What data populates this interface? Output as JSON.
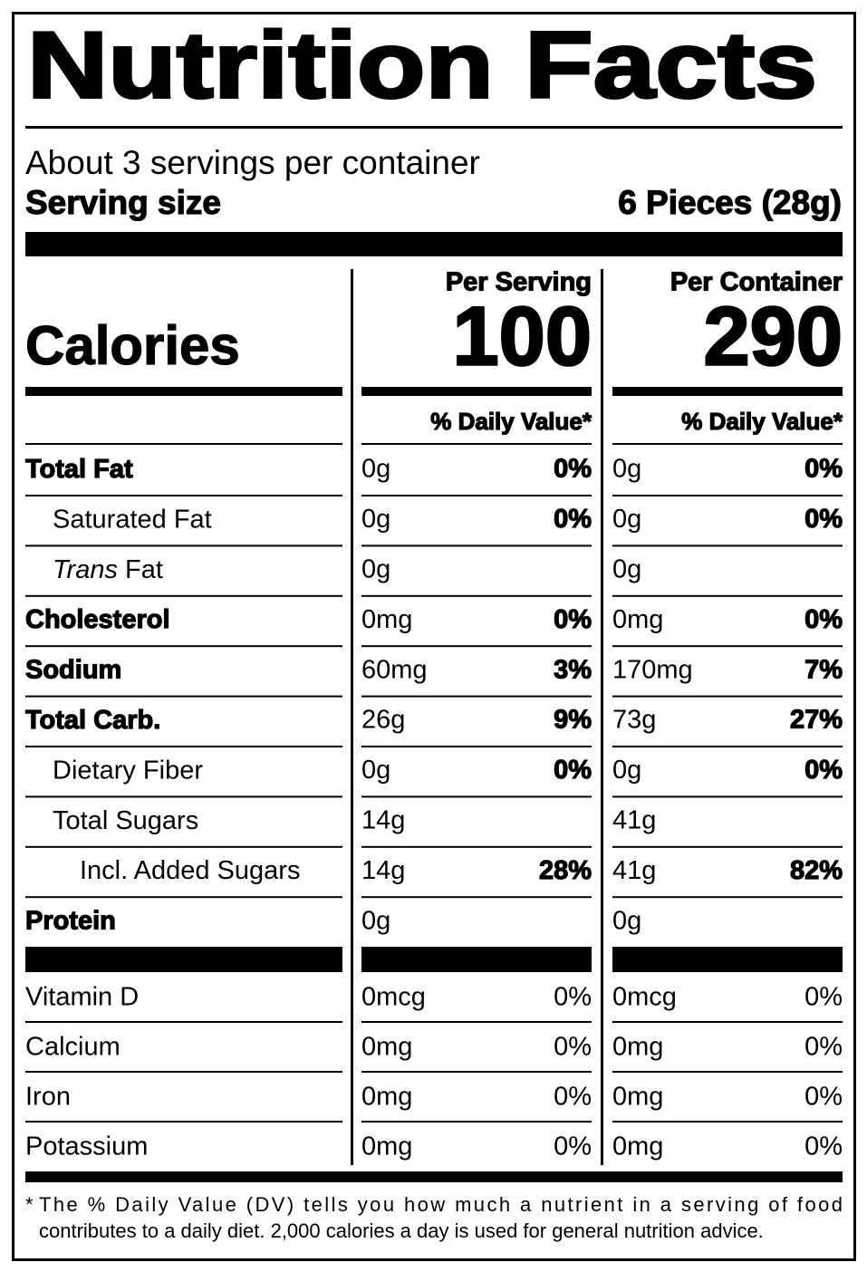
{
  "title": "Nutrition Facts",
  "servings_per_container": "About 3 servings per container",
  "serving_size_label": "Serving size",
  "serving_size": "6 Pieces (28g)",
  "calories_label": "Calories",
  "columns": [
    {
      "header": "Per Serving",
      "calories": "100",
      "dv_header": "% Daily Value*"
    },
    {
      "header": "Per Container",
      "calories": "290",
      "dv_header": "% Daily Value*"
    }
  ],
  "nutrients": [
    {
      "name": "Total Fat",
      "bold": true,
      "indent": 0,
      "values": [
        {
          "amount": "0g",
          "dv": "0%"
        },
        {
          "amount": "0g",
          "dv": "0%"
        }
      ]
    },
    {
      "name": "Saturated Fat",
      "bold": false,
      "indent": 1,
      "values": [
        {
          "amount": "0g",
          "dv": "0%"
        },
        {
          "amount": "0g",
          "dv": "0%"
        }
      ]
    },
    {
      "italic_prefix": "Trans",
      "name": "Fat",
      "bold": false,
      "indent": 1,
      "values": [
        {
          "amount": "0g"
        },
        {
          "amount": "0g"
        }
      ]
    },
    {
      "name": "Cholesterol",
      "bold": true,
      "indent": 0,
      "values": [
        {
          "amount": "0mg",
          "dv": "0%"
        },
        {
          "amount": "0mg",
          "dv": "0%"
        }
      ]
    },
    {
      "name": "Sodium",
      "bold": true,
      "indent": 0,
      "values": [
        {
          "amount": "60mg",
          "dv": "3%"
        },
        {
          "amount": "170mg",
          "dv": "7%"
        }
      ]
    },
    {
      "name": "Total Carb.",
      "bold": true,
      "indent": 0,
      "values": [
        {
          "amount": "26g",
          "dv": "9%"
        },
        {
          "amount": "73g",
          "dv": "27%"
        }
      ]
    },
    {
      "name": "Dietary Fiber",
      "bold": false,
      "indent": 1,
      "values": [
        {
          "amount": "0g",
          "dv": "0%"
        },
        {
          "amount": "0g",
          "dv": "0%"
        }
      ]
    },
    {
      "name": "Total Sugars",
      "bold": false,
      "indent": 1,
      "values": [
        {
          "amount": "14g"
        },
        {
          "amount": "41g"
        }
      ]
    },
    {
      "name": "Incl. Added Sugars",
      "bold": false,
      "indent": 2,
      "values": [
        {
          "amount": "14g",
          "dv": "28%"
        },
        {
          "amount": "41g",
          "dv": "82%"
        }
      ]
    },
    {
      "name": "Protein",
      "bold": true,
      "indent": 0,
      "values": [
        {
          "amount": "0g"
        },
        {
          "amount": "0g"
        }
      ]
    }
  ],
  "vitamins": [
    {
      "name": "Vitamin D",
      "values": [
        {
          "amount": "0mcg",
          "dv": "0%"
        },
        {
          "amount": "0mcg",
          "dv": "0%"
        }
      ]
    },
    {
      "name": "Calcium",
      "values": [
        {
          "amount": "0mg",
          "dv": "0%"
        },
        {
          "amount": "0mg",
          "dv": "0%"
        }
      ]
    },
    {
      "name": "Iron",
      "values": [
        {
          "amount": "0mg",
          "dv": "0%"
        },
        {
          "amount": "0mg",
          "dv": "0%"
        }
      ]
    },
    {
      "name": "Potassium",
      "values": [
        {
          "amount": "0mg",
          "dv": "0%"
        },
        {
          "amount": "0mg",
          "dv": "0%"
        }
      ]
    }
  ],
  "footnote_mark": "*",
  "footnote": [
    "The % Daily Value (DV) tells you how much a nutrient in a serving of food",
    "contributes to a daily diet. 2,000 calories a day is used for general nutrition advice."
  ]
}
